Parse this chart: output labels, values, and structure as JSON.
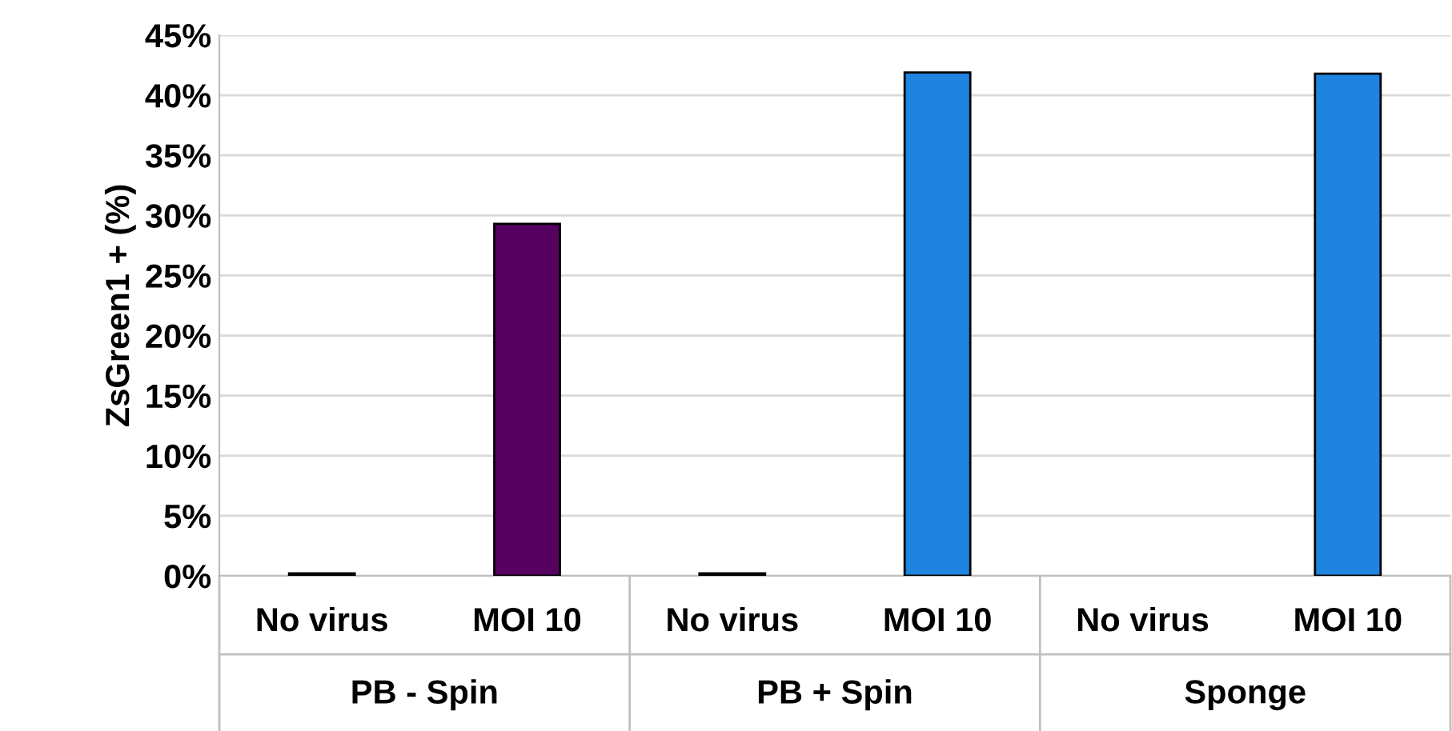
{
  "chart_data": {
    "type": "bar",
    "ylabel": "ZsGreen1 + (%)",
    "categories": [
      "No virus",
      "MOI 10",
      "No virus",
      "MOI 10",
      "No virus",
      "MOI 10"
    ],
    "values": [
      0.2,
      29.3,
      0.2,
      41.9,
      null,
      41.8
    ],
    "colors": [
      "#d9d9d9",
      "#560060",
      "#d9d9d9",
      "#1e84e0",
      "#d9d9d9",
      "#1e84e0"
    ],
    "annotations": [
      "PB - Spin",
      "PB + Spin",
      "Sponge"
    ],
    "ylim": [
      0,
      45
    ],
    "yticks": [
      {
        "value": 0,
        "label": "0%"
      },
      {
        "value": 5,
        "label": "5%"
      },
      {
        "value": 10,
        "label": "10%"
      },
      {
        "value": 15,
        "label": "15%"
      },
      {
        "value": 20,
        "label": "20%"
      },
      {
        "value": 25,
        "label": "25%"
      },
      {
        "value": 30,
        "label": "30%"
      },
      {
        "value": 35,
        "label": "35%"
      },
      {
        "value": 40,
        "label": "40%"
      },
      {
        "value": 45,
        "label": "45%"
      }
    ],
    "grid": "y"
  }
}
